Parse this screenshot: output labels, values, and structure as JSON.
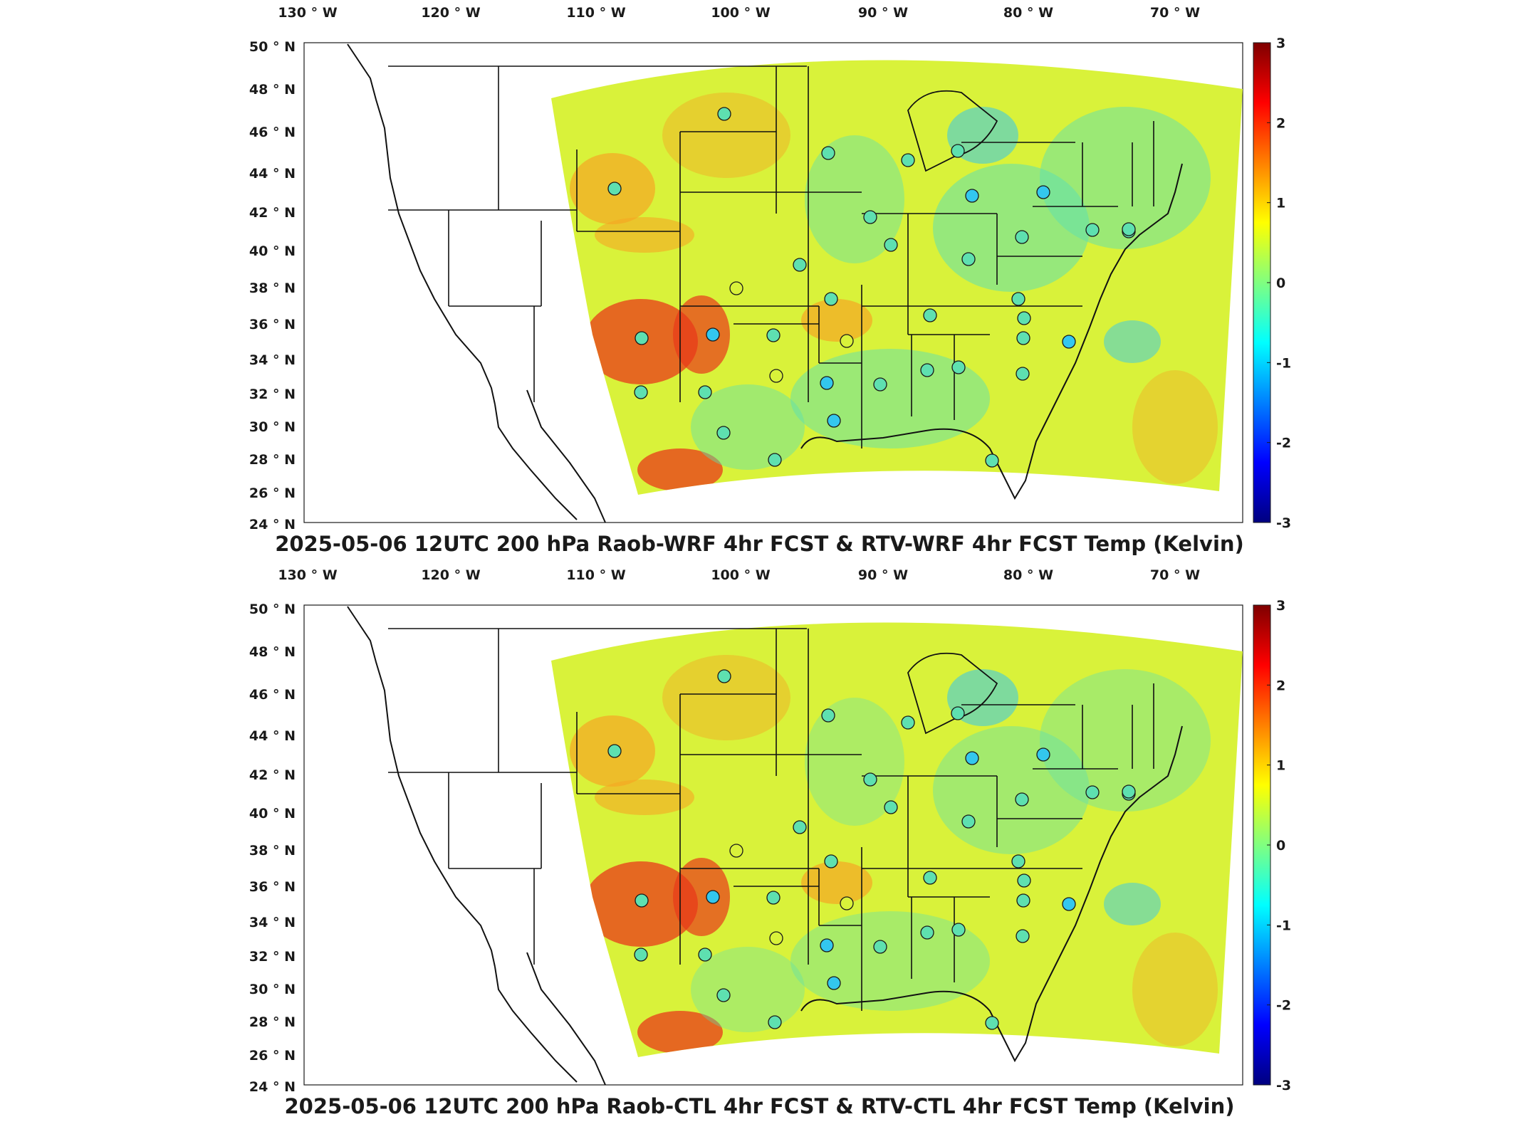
{
  "panels": [
    {
      "title": "2025-05-06 12UTC 200 hPa Raob-WRF 4hr FCST & RTV-WRF 4hr FCST Temp (Kelvin)"
    },
    {
      "title": "2025-05-06 12UTC 200 hPa Raob-CTL 4hr FCST & RTV-CTL 4hr FCST Temp (Kelvin)"
    }
  ],
  "axes": {
    "lon_ticks": [
      "130",
      "120",
      "110",
      "100",
      "90",
      "80",
      "70"
    ],
    "lon_hemisphere": "W",
    "lat_ticks": [
      "50",
      "48",
      "46",
      "44",
      "42",
      "40",
      "38",
      "36",
      "34",
      "32",
      "30",
      "28",
      "26",
      "24"
    ],
    "lat_hemisphere": "N",
    "degree_symbol": "°"
  },
  "colorbar": {
    "ticks": [
      "3",
      "2",
      "1",
      "0",
      "-1",
      "-2",
      "-3"
    ],
    "colors": [
      "#7f0000",
      "#ff0000",
      "#ff8000",
      "#ffff00",
      "#80ff80",
      "#00ffff",
      "#0080ff",
      "#0000ff",
      "#00007f"
    ]
  },
  "field_colors": {
    "warm": "#f5a623",
    "hot": "#e8391a",
    "neutral": "#d9f23a",
    "cool": "#5ee0b0",
    "cold": "#33c7ee"
  },
  "raob_stations": {
    "count_per_panel": 39,
    "marker": "circle",
    "marker_edge": "#1a1a1a"
  }
}
